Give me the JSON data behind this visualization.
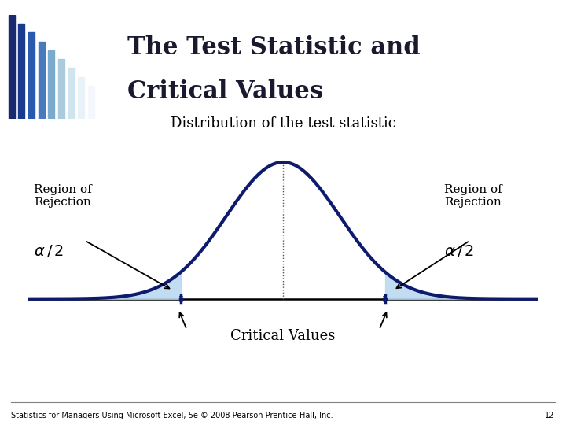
{
  "title_line1": "The Test Statistic and",
  "title_line2": "Critical Values",
  "subtitle": "Distribution of the test statistic",
  "critical_value": 1.8,
  "mu": 0.0,
  "sigma": 1.0,
  "x_min": -4.5,
  "x_max": 4.5,
  "curve_color": "#0d1a6e",
  "fill_color": "#b8d8f0",
  "fill_alpha": 0.85,
  "line_width": 3.0,
  "background_color": "#ffffff",
  "title_color": "#1a1a2e",
  "title_fontsize": 22,
  "subtitle_fontsize": 13,
  "label_fontsize": 11,
  "alpha_fontsize": 14,
  "footer_text": "Statistics for Managers Using Microsoft Excel, 5e © 2008 Pearson Prentice-Hall, Inc.",
  "footer_page": "12",
  "stripe_colors": [
    "#1a2a6e",
    "#1a3a8e",
    "#2a5aae",
    "#4a7abe",
    "#7aaace",
    "#aacade",
    "#d0e4f0",
    "#e8f2f8",
    "#f4f8fc"
  ],
  "top_bar_color": "#1a1a2e"
}
